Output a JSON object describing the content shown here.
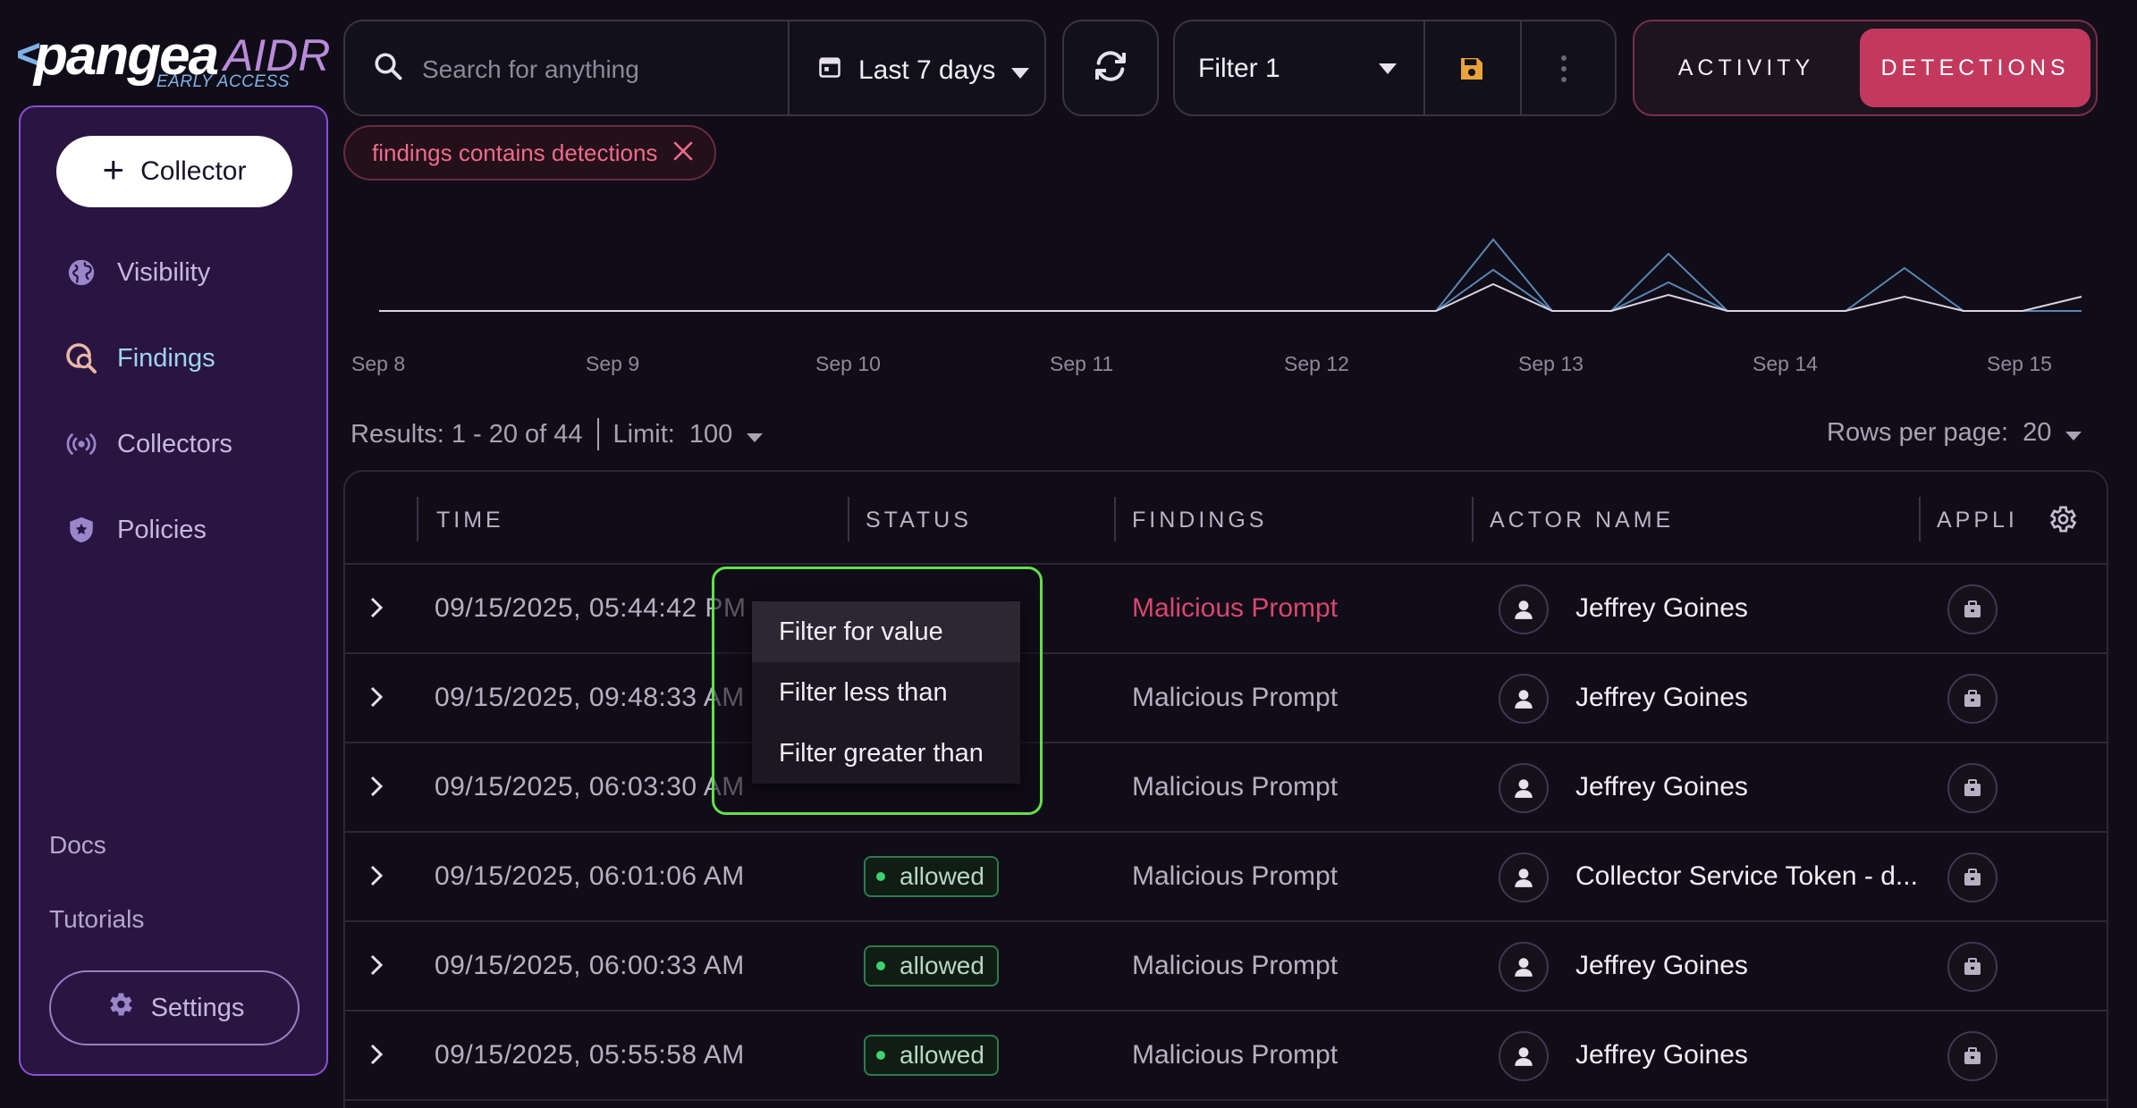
{
  "brand": {
    "wordmark": "pangea",
    "product": "AIDR",
    "tag": "EARLY ACCESS"
  },
  "sidebar": {
    "collector_button": "Collector",
    "items": [
      {
        "label": "Visibility",
        "icon": "globe-icon",
        "active": false
      },
      {
        "label": "Findings",
        "icon": "findings-search-icon",
        "active": true
      },
      {
        "label": "Collectors",
        "icon": "broadcast-icon",
        "active": false
      },
      {
        "label": "Policies",
        "icon": "shield-icon",
        "active": false
      }
    ],
    "docs": "Docs",
    "tutorials": "Tutorials",
    "settings": "Settings"
  },
  "toolbar": {
    "search_placeholder": "Search for anything",
    "date_range": "Last 7 days",
    "filter_name": "Filter 1"
  },
  "mode": {
    "activity": "ACTIVITY",
    "detections": "DETECTIONS",
    "selected": "DETECTIONS"
  },
  "active_filter": "findings contains detections",
  "chart_data": {
    "type": "line",
    "x": [
      "Sep 8",
      "Sep 9",
      "Sep 10",
      "Sep 11",
      "Sep 12",
      "Sep 13",
      "Sep 14",
      "Sep 15"
    ]
  },
  "results": {
    "summary": "Results: 1 - 20 of 44",
    "limit_label": "Limit:",
    "limit_value": "100",
    "rows_per_page_label": "Rows per page:",
    "rows_per_page_value": "20"
  },
  "table": {
    "columns": [
      "TIME",
      "STATUS",
      "FINDINGS",
      "ACTOR NAME",
      "APPLI"
    ],
    "rows": [
      {
        "time": "09/15/2025, 05:44:42 PM",
        "status": "",
        "finding": "Malicious Prompt",
        "actor": "Jeffrey Goines",
        "highlight": true
      },
      {
        "time": "09/15/2025, 09:48:33 AM",
        "status": "",
        "finding": "Malicious Prompt",
        "actor": "Jeffrey Goines",
        "highlight": false
      },
      {
        "time": "09/15/2025, 06:03:30 AM",
        "status": "",
        "finding": "Malicious Prompt",
        "actor": "Jeffrey Goines",
        "highlight": false
      },
      {
        "time": "09/15/2025, 06:01:06 AM",
        "status": "allowed",
        "finding": "Malicious Prompt",
        "actor": "Collector Service Token - d...",
        "highlight": false
      },
      {
        "time": "09/15/2025, 06:00:33 AM",
        "status": "allowed",
        "finding": "Malicious Prompt",
        "actor": "Jeffrey Goines",
        "highlight": false
      },
      {
        "time": "09/15/2025, 05:55:58 AM",
        "status": "allowed",
        "finding": "Malicious Prompt",
        "actor": "Jeffrey Goines",
        "highlight": false
      }
    ]
  },
  "context_menu": {
    "items": [
      "Filter for value",
      "Filter less than",
      "Filter greater than"
    ],
    "hovered": "Filter for value"
  },
  "colors": {
    "accent": "#c3395e",
    "sidebar_border": "#8b4fd6",
    "highlight_outline": "#62e04a",
    "status_allowed": "#3fd16d"
  }
}
